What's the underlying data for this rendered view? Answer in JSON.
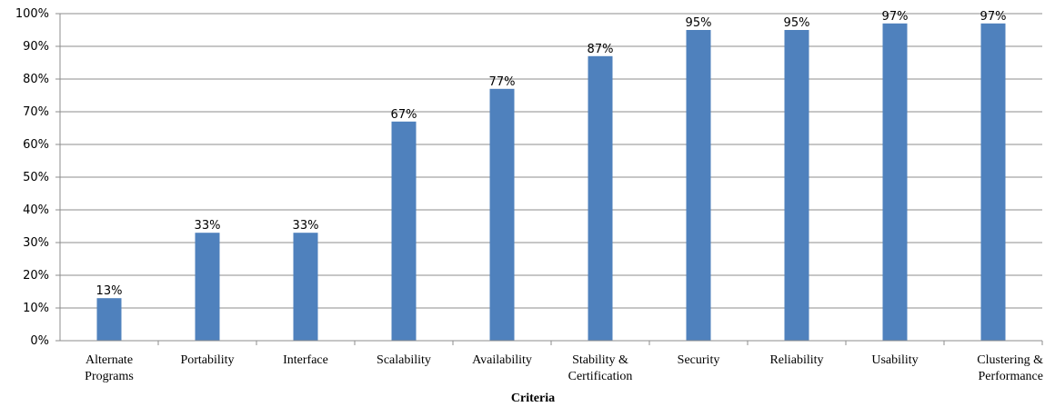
{
  "chart_data": {
    "type": "bar",
    "categories": [
      [
        "Alternate",
        "Programs"
      ],
      [
        "Portability"
      ],
      [
        "Interface"
      ],
      [
        "Scalability"
      ],
      [
        "Availability"
      ],
      [
        "Stability &",
        "Certification"
      ],
      [
        "Security"
      ],
      [
        "Reliability"
      ],
      [
        "Usability"
      ],
      [
        "Clustering &",
        "Performance"
      ]
    ],
    "values": [
      13,
      33,
      33,
      67,
      77,
      87,
      95,
      95,
      97,
      97
    ],
    "data_labels": [
      "13%",
      "33%",
      "33%",
      "67%",
      "77%",
      "87%",
      "95%",
      "95%",
      "97%",
      "97%"
    ],
    "yticks": [
      "0%",
      "10%",
      "20%",
      "30%",
      "40%",
      "50%",
      "60%",
      "70%",
      "80%",
      "90%",
      "100%"
    ],
    "ylim": [
      0,
      100
    ],
    "xlabel": "Criteria",
    "ylabel": "",
    "title": "",
    "grid": true,
    "legend": "none",
    "bar_color": "#4f81bd",
    "grid_color": "#8c8c8c"
  }
}
